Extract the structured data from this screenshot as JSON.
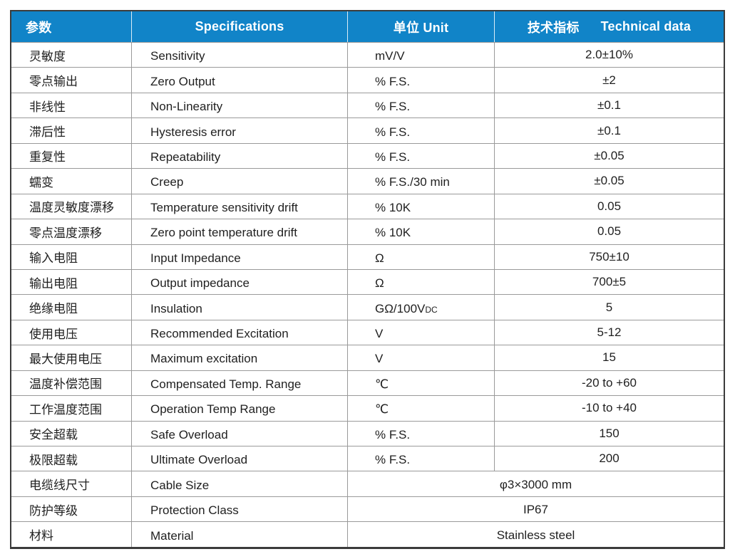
{
  "header": {
    "col1": "参数",
    "col2": "Specifications",
    "col3": "单位 Unit",
    "col4_cn": "技术指标",
    "col4_en": "Technical data"
  },
  "colors": {
    "header_bg": "#1184c8",
    "header_text": "#ffffff",
    "grid_line": "#9a9a9a",
    "outer_border": "#3b3b3b",
    "body_text": "#1f1f1f"
  },
  "table": {
    "rows": [
      {
        "cn": "灵敏度",
        "en": "Sensitivity",
        "unit": "mV/V",
        "value": "2.0±10%"
      },
      {
        "cn": "零点输出",
        "en": "Zero Output",
        "unit": "% F.S.",
        "value": "±2"
      },
      {
        "cn": "非线性",
        "en": "Non-Linearity",
        "unit": "% F.S.",
        "value": "±0.1"
      },
      {
        "cn": "滞后性",
        "en": "Hysteresis error",
        "unit": "% F.S.",
        "value": "±0.1"
      },
      {
        "cn": "重复性",
        "en": "Repeatability",
        "unit": "% F.S.",
        "value": "±0.05"
      },
      {
        "cn": "蠕变",
        "en": "Creep",
        "unit": "% F.S./30 min",
        "value": "±0.05"
      },
      {
        "cn": "温度灵敏度漂移",
        "en": "Temperature sensitivity drift",
        "unit": "% 10K",
        "value": "0.05"
      },
      {
        "cn": "零点温度漂移",
        "en": "Zero point temperature drift",
        "unit": "% 10K",
        "value": "0.05"
      },
      {
        "cn": "输入电阻",
        "en": "Input Impedance",
        "unit": "Ω",
        "value": "750±10"
      },
      {
        "cn": "输出电阻",
        "en": "Output impedance",
        "unit": "Ω",
        "value": "700±5"
      },
      {
        "cn": "绝缘电阻",
        "en": "Insulation",
        "unit": "GΩ/100V",
        "unit_sub": "DC",
        "value": "5"
      },
      {
        "cn": "使用电压",
        "en": "Recommended Excitation",
        "unit": "V",
        "value": "5-12"
      },
      {
        "cn": "最大使用电压",
        "en": "Maximum excitation",
        "unit": "V",
        "value": "15"
      },
      {
        "cn": "温度补偿范围",
        "en": "Compensated Temp. Range",
        "unit": "℃",
        "value": "-20 to +60"
      },
      {
        "cn": "工作温度范围",
        "en": "Operation Temp Range",
        "unit": "℃",
        "value": "-10 to +40"
      },
      {
        "cn": "安全超载",
        "en": "Safe Overload",
        "unit": "% F.S.",
        "value": "150"
      },
      {
        "cn": "极限超载",
        "en": "Ultimate Overload",
        "unit": "% F.S.",
        "value": "200"
      },
      {
        "cn": "电缆线尺寸",
        "en": "Cable Size",
        "merged": true,
        "value": "φ3×3000 mm"
      },
      {
        "cn": "防护等级",
        "en": "Protection Class",
        "merged": true,
        "value": "IP67"
      },
      {
        "cn": "材料",
        "en": "Material",
        "merged": true,
        "value": "Stainless steel"
      }
    ]
  }
}
